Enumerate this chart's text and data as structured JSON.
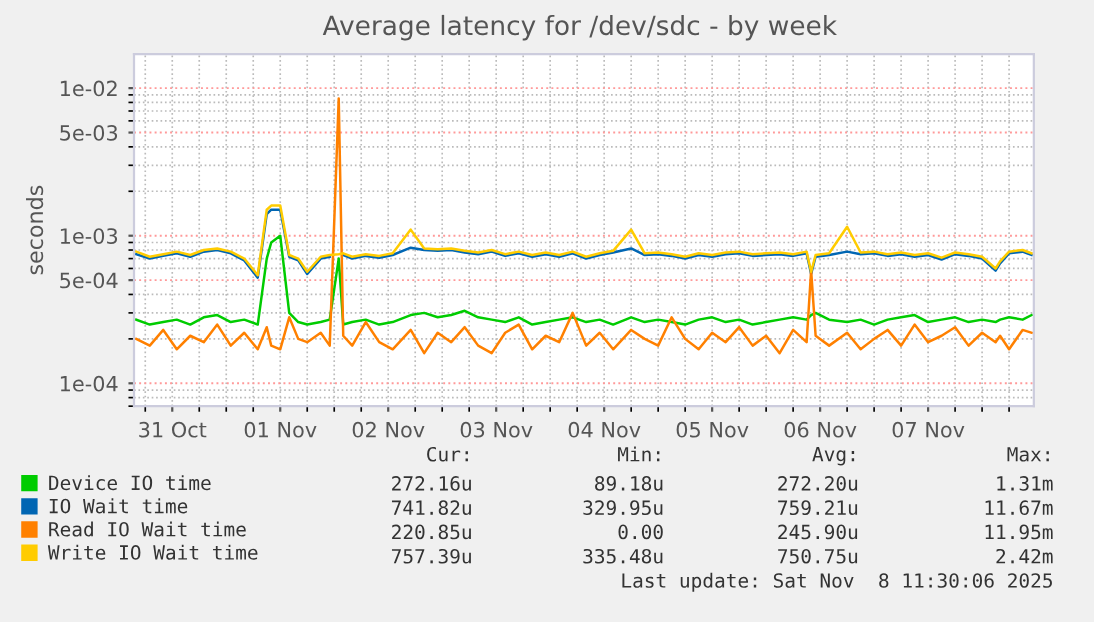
{
  "chart_data": {
    "type": "line",
    "title": "Average latency for /dev/sdc - by week",
    "ylabel": "seconds",
    "log": "y",
    "grid": true,
    "legend": "bottom",
    "marker": "none",
    "line_style": "solid",
    "xlim": [
      "2025-10-31T03:30",
      "2025-11-08T11:30"
    ],
    "ylim": [
      7e-05,
      0.017
    ],
    "yticks": [
      {
        "value": 0.0001,
        "label": "1e-04"
      },
      {
        "value": 0.0005,
        "label": "5e-04"
      },
      {
        "value": 0.001,
        "label": "1e-03"
      },
      {
        "value": 0.005,
        "label": "5e-03"
      },
      {
        "value": 0.01,
        "label": "1e-02"
      }
    ],
    "xticks": [
      {
        "value": "2025-10-31T12:00",
        "label": "31 Oct"
      },
      {
        "value": "2025-11-01T12:00",
        "label": "01 Nov"
      },
      {
        "value": "2025-11-02T12:00",
        "label": "02 Nov"
      },
      {
        "value": "2025-11-03T12:00",
        "label": "03 Nov"
      },
      {
        "value": "2025-11-04T12:00",
        "label": "04 Nov"
      },
      {
        "value": "2025-11-05T12:00",
        "label": "05 Nov"
      },
      {
        "value": "2025-11-06T12:00",
        "label": "06 Nov"
      },
      {
        "value": "2025-11-07T12:00",
        "label": "07 Nov"
      }
    ],
    "x": [
      "2025-10-31T04:00",
      "2025-10-31T07:00",
      "2025-10-31T10:00",
      "2025-10-31T13:00",
      "2025-10-31T16:00",
      "2025-10-31T19:00",
      "2025-10-31T22:00",
      "2025-11-01T01:00",
      "2025-11-01T04:00",
      "2025-11-01T07:00",
      "2025-11-01T09:00",
      "2025-11-01T10:00",
      "2025-11-01T12:00",
      "2025-11-01T14:00",
      "2025-11-01T16:00",
      "2025-11-01T18:00",
      "2025-11-01T21:00",
      "2025-11-01T23:00",
      "2025-11-02T01:00",
      "2025-11-02T02:00",
      "2025-11-02T04:00",
      "2025-11-02T07:00",
      "2025-11-02T10:00",
      "2025-11-02T13:00",
      "2025-11-02T17:00",
      "2025-11-02T20:00",
      "2025-11-02T23:00",
      "2025-11-03T02:00",
      "2025-11-03T05:00",
      "2025-11-03T08:00",
      "2025-11-03T11:00",
      "2025-11-03T14:00",
      "2025-11-03T17:00",
      "2025-11-03T20:00",
      "2025-11-03T23:00",
      "2025-11-04T02:00",
      "2025-11-04T05:00",
      "2025-11-04T08:00",
      "2025-11-04T11:00",
      "2025-11-04T14:00",
      "2025-11-04T18:00",
      "2025-11-04T21:00",
      "2025-11-05T00:00",
      "2025-11-05T03:00",
      "2025-11-05T06:00",
      "2025-11-05T09:00",
      "2025-11-05T12:00",
      "2025-11-05T15:00",
      "2025-11-05T18:00",
      "2025-11-05T21:00",
      "2025-11-06T00:00",
      "2025-11-06T03:00",
      "2025-11-06T06:00",
      "2025-11-06T09:00",
      "2025-11-06T10:00",
      "2025-11-06T11:00",
      "2025-11-06T14:00",
      "2025-11-06T18:00",
      "2025-11-06T21:00",
      "2025-11-07T00:00",
      "2025-11-07T03:00",
      "2025-11-07T06:00",
      "2025-11-07T09:00",
      "2025-11-07T12:00",
      "2025-11-07T15:00",
      "2025-11-07T18:00",
      "2025-11-07T21:00",
      "2025-11-08T00:00",
      "2025-11-08T03:00",
      "2025-11-08T04:00",
      "2025-11-08T06:00",
      "2025-11-08T09:00",
      "2025-11-08T11:00"
    ],
    "series": [
      {
        "name": "Device IO time",
        "color": "#00cc00",
        "values": [
          0.00027,
          0.00025,
          0.00026,
          0.00027,
          0.00025,
          0.00028,
          0.00029,
          0.00026,
          0.00027,
          0.00025,
          0.0007,
          0.0009,
          0.001,
          0.0003,
          0.00026,
          0.00025,
          0.00026,
          0.00027,
          0.0007,
          0.00025,
          0.00026,
          0.00027,
          0.00025,
          0.00026,
          0.00029,
          0.0003,
          0.00028,
          0.00029,
          0.00031,
          0.00028,
          0.00027,
          0.00026,
          0.00028,
          0.00025,
          0.00026,
          0.00027,
          0.00028,
          0.00026,
          0.00027,
          0.00025,
          0.00028,
          0.00026,
          0.00027,
          0.00026,
          0.00025,
          0.00027,
          0.00028,
          0.00026,
          0.00027,
          0.00025,
          0.00026,
          0.00027,
          0.00028,
          0.00027,
          0.00029,
          0.0003,
          0.00027,
          0.00026,
          0.00027,
          0.00025,
          0.00027,
          0.00028,
          0.00029,
          0.00026,
          0.00027,
          0.00028,
          0.00026,
          0.00027,
          0.00026,
          0.00027,
          0.00028,
          0.00027,
          0.00029
        ]
      },
      {
        "name": "IO Wait time",
        "color": "#0066b3",
        "values": [
          0.00075,
          0.0007,
          0.00073,
          0.00076,
          0.00072,
          0.00078,
          0.0008,
          0.00076,
          0.00068,
          0.00052,
          0.0014,
          0.0015,
          0.0015,
          0.00072,
          0.00068,
          0.00055,
          0.0007,
          0.00072,
          null,
          0.00074,
          0.0007,
          0.00073,
          0.00071,
          0.00074,
          0.00083,
          0.0008,
          0.00079,
          0.0008,
          0.00077,
          0.00075,
          0.00078,
          0.00073,
          0.00076,
          0.00072,
          0.00075,
          0.00072,
          0.00076,
          0.0007,
          0.00074,
          0.00077,
          0.00082,
          0.00074,
          0.00075,
          0.00073,
          0.0007,
          0.00074,
          0.00072,
          0.00075,
          0.00076,
          0.00073,
          0.00074,
          0.00075,
          0.00073,
          0.00076,
          0.00055,
          0.00072,
          0.00074,
          0.00078,
          0.00075,
          0.00076,
          0.00073,
          0.00075,
          0.00072,
          0.00074,
          0.00069,
          0.00075,
          0.00073,
          0.0007,
          0.00058,
          0.00065,
          0.00076,
          0.00078,
          0.00074
        ]
      },
      {
        "name": "Read IO Wait time",
        "color": "#ff8000",
        "values": [
          0.0002,
          0.00018,
          0.00023,
          0.00017,
          0.00021,
          0.00019,
          0.00025,
          0.00018,
          0.00022,
          0.00017,
          0.00024,
          0.00018,
          0.00017,
          0.00028,
          0.0002,
          0.00019,
          0.00022,
          0.00018,
          0.0085,
          0.00021,
          0.00018,
          0.00026,
          0.00019,
          0.00017,
          0.00023,
          0.00016,
          0.00022,
          0.00019,
          0.00024,
          0.00018,
          0.00016,
          0.00022,
          0.00025,
          0.00017,
          0.00021,
          0.00019,
          0.0003,
          0.00018,
          0.00022,
          0.00017,
          0.00023,
          0.0002,
          0.00018,
          0.00028,
          0.0002,
          0.00017,
          0.00022,
          0.00019,
          0.00024,
          0.00018,
          0.00021,
          0.00016,
          0.00023,
          0.00019,
          0.00058,
          0.00021,
          0.00018,
          0.00022,
          0.00017,
          0.0002,
          0.00023,
          0.00018,
          0.00025,
          0.00019,
          0.00021,
          0.00024,
          0.00018,
          0.00022,
          0.00019,
          0.00021,
          0.00017,
          0.00023,
          0.00022
        ]
      },
      {
        "name": "Write IO Wait time",
        "color": "#ffcc00",
        "values": [
          0.00078,
          0.00072,
          0.00075,
          0.00078,
          0.00074,
          0.0008,
          0.00082,
          0.00078,
          0.0007,
          0.00054,
          0.0015,
          0.0016,
          0.0016,
          0.00074,
          0.0007,
          0.00057,
          0.00072,
          0.00074,
          0.00075,
          0.00076,
          0.00072,
          0.00075,
          0.00073,
          0.00076,
          0.0011,
          0.00082,
          0.00081,
          0.00082,
          0.00079,
          0.00077,
          0.0008,
          0.00075,
          0.00078,
          0.00074,
          0.00077,
          0.00074,
          0.00078,
          0.00072,
          0.00076,
          0.00079,
          0.0011,
          0.00076,
          0.00077,
          0.00075,
          0.00072,
          0.00076,
          0.00074,
          0.00077,
          0.00078,
          0.00075,
          0.00076,
          0.00077,
          0.00075,
          0.00078,
          0.00057,
          0.00074,
          0.00076,
          0.00115,
          0.00077,
          0.00078,
          0.00075,
          0.00077,
          0.00074,
          0.00076,
          0.00071,
          0.00077,
          0.00075,
          0.00072,
          0.0006,
          0.00067,
          0.00078,
          0.0008,
          0.00076
        ]
      }
    ],
    "annotations": [
      "Cur:",
      "Min:",
      "Avg:",
      "Max:",
      "272.16u",
      "89.18u",
      "272.20u",
      "1.31m",
      "741.82u",
      "329.95u",
      "759.21u",
      "11.67m",
      "220.85u",
      "0.00",
      "245.90u",
      "11.95m",
      "757.39u",
      "335.48u",
      "750.75u",
      "2.42m",
      "Last update: Sat Nov  8 11:30:06 2025"
    ]
  }
}
